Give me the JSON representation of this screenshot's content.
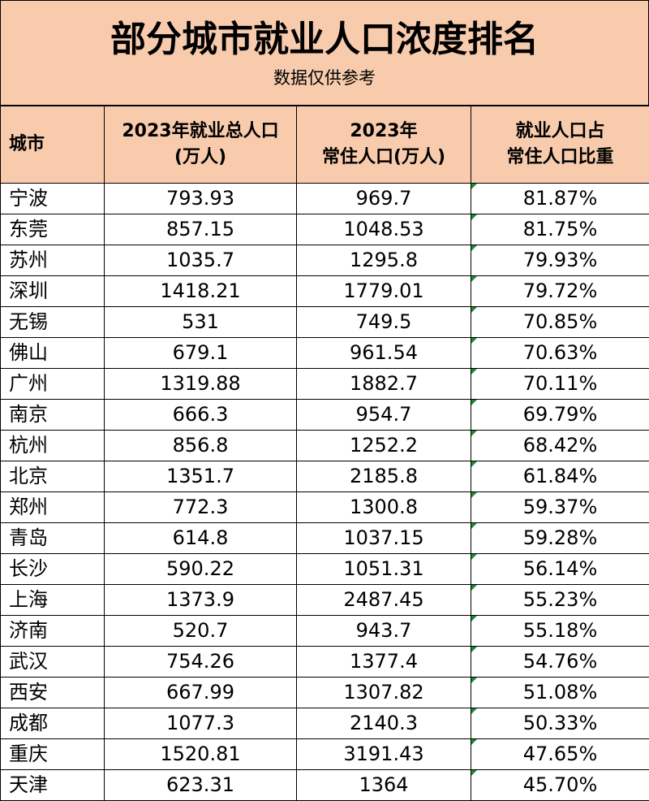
{
  "header": {
    "title": "部分城市就业人口浓度排名",
    "subtitle": "数据仅供参考"
  },
  "table": {
    "columns": [
      [
        "城市"
      ],
      [
        "2023年就业总人口",
        "(万人)"
      ],
      [
        "2023年",
        "常住人口(万人)"
      ],
      [
        "就业人口占",
        "常住人口比重"
      ]
    ],
    "rows": [
      [
        "宁波",
        "793.93",
        "969.7",
        "81.87%"
      ],
      [
        "东莞",
        "857.15",
        "1048.53",
        "81.75%"
      ],
      [
        "苏州",
        "1035.7",
        "1295.8",
        "79.93%"
      ],
      [
        "深圳",
        "1418.21",
        "1779.01",
        "79.72%"
      ],
      [
        "无锡",
        "531",
        "749.5",
        "70.85%"
      ],
      [
        "佛山",
        "679.1",
        "961.54",
        "70.63%"
      ],
      [
        "广州",
        "1319.88",
        "1882.7",
        "70.11%"
      ],
      [
        "南京",
        "666.3",
        "954.7",
        "69.79%"
      ],
      [
        "杭州",
        "856.8",
        "1252.2",
        "68.42%"
      ],
      [
        "北京",
        "1351.7",
        "2185.8",
        "61.84%"
      ],
      [
        "郑州",
        "772.3",
        "1300.8",
        "59.37%"
      ],
      [
        "青岛",
        "614.8",
        "1037.15",
        "59.28%"
      ],
      [
        "长沙",
        "590.22",
        "1051.31",
        "56.14%"
      ],
      [
        "上海",
        "1373.9",
        "2487.45",
        "55.23%"
      ],
      [
        "济南",
        "520.7",
        "943.7",
        "55.18%"
      ],
      [
        "武汉",
        "754.26",
        "1377.4",
        "54.76%"
      ],
      [
        "西安",
        "667.99",
        "1307.82",
        "51.08%"
      ],
      [
        "成都",
        "1077.3",
        "2140.3",
        "50.33%"
      ],
      [
        "重庆",
        "1520.81",
        "3191.43",
        "47.65%"
      ],
      [
        "天津",
        "623.31",
        "1364",
        "45.70%"
      ]
    ]
  }
}
